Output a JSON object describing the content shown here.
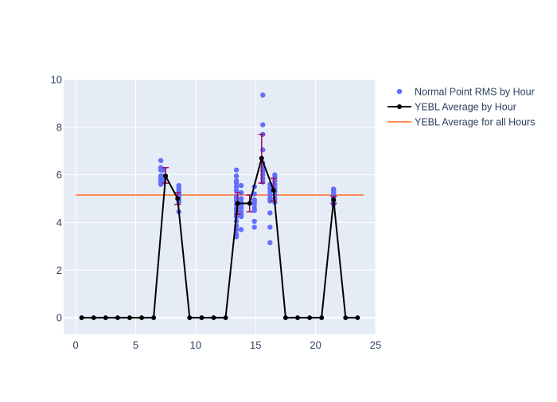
{
  "chart_data": {
    "type": "scatter",
    "title": "",
    "xlabel": "",
    "ylabel": "",
    "xlim": [
      -1,
      25
    ],
    "ylim": [
      -0.7,
      10
    ],
    "x_ticks": [
      0,
      5,
      10,
      15,
      20,
      25
    ],
    "y_ticks": [
      0,
      2,
      4,
      6,
      8,
      10
    ],
    "grid": true,
    "legend_position": "top-right",
    "colors": {
      "plot_bg": "#e5ecf6",
      "grid": "#ffffff",
      "scatter": "#636efa",
      "average_line": "#000000",
      "error_bar": "#a10a5a",
      "overall_line": "#ff8c55"
    },
    "series": [
      {
        "name": "Normal Point RMS by Hour",
        "kind": "scatter",
        "points": [
          [
            7.1,
            6.6
          ],
          [
            7.1,
            6.3
          ],
          [
            7.1,
            6.25
          ],
          [
            7.1,
            6.2
          ],
          [
            7.1,
            5.95
          ],
          [
            7.1,
            5.85
          ],
          [
            7.1,
            5.75
          ],
          [
            7.1,
            5.7
          ],
          [
            7.1,
            5.65
          ],
          [
            7.1,
            5.6
          ],
          [
            7.3,
            6.2
          ],
          [
            7.3,
            5.95
          ],
          [
            7.3,
            5.8
          ],
          [
            7.3,
            5.7
          ],
          [
            8.6,
            5.55
          ],
          [
            8.6,
            5.45
          ],
          [
            8.6,
            5.35
          ],
          [
            8.6,
            5.25
          ],
          [
            8.6,
            5.15
          ],
          [
            8.6,
            5.05
          ],
          [
            8.6,
            4.95
          ],
          [
            8.6,
            4.85
          ],
          [
            8.6,
            4.45
          ],
          [
            13.4,
            6.2
          ],
          [
            13.4,
            5.95
          ],
          [
            13.4,
            5.75
          ],
          [
            13.4,
            5.65
          ],
          [
            13.4,
            5.5
          ],
          [
            13.4,
            5.35
          ],
          [
            13.4,
            5.1
          ],
          [
            13.4,
            5.0
          ],
          [
            13.4,
            4.9
          ],
          [
            13.4,
            4.75
          ],
          [
            13.4,
            4.6
          ],
          [
            13.4,
            4.5
          ],
          [
            13.4,
            4.35
          ],
          [
            13.4,
            4.25
          ],
          [
            13.4,
            4.05
          ],
          [
            13.4,
            3.85
          ],
          [
            13.4,
            3.7
          ],
          [
            13.4,
            3.5
          ],
          [
            13.4,
            3.4
          ],
          [
            13.8,
            5.55
          ],
          [
            13.8,
            5.25
          ],
          [
            13.8,
            5.0
          ],
          [
            13.8,
            4.85
          ],
          [
            13.8,
            4.7
          ],
          [
            13.8,
            4.6
          ],
          [
            13.8,
            4.45
          ],
          [
            13.8,
            4.35
          ],
          [
            13.8,
            4.25
          ],
          [
            13.8,
            3.7
          ],
          [
            14.9,
            5.5
          ],
          [
            14.9,
            5.2
          ],
          [
            14.9,
            4.95
          ],
          [
            14.9,
            4.85
          ],
          [
            14.9,
            4.75
          ],
          [
            14.9,
            4.6
          ],
          [
            14.9,
            4.5
          ],
          [
            14.9,
            4.05
          ],
          [
            14.9,
            3.8
          ],
          [
            15.6,
            9.35
          ],
          [
            15.6,
            8.1
          ],
          [
            15.6,
            7.7
          ],
          [
            15.6,
            7.05
          ],
          [
            15.6,
            6.5
          ],
          [
            15.6,
            6.3
          ],
          [
            15.6,
            6.15
          ],
          [
            15.6,
            6.0
          ],
          [
            15.6,
            5.85
          ],
          [
            15.6,
            5.7
          ],
          [
            16.2,
            5.6
          ],
          [
            16.2,
            5.45
          ],
          [
            16.2,
            5.3
          ],
          [
            16.2,
            5.15
          ],
          [
            16.2,
            5.0
          ],
          [
            16.2,
            4.9
          ],
          [
            16.2,
            4.4
          ],
          [
            16.2,
            3.8
          ],
          [
            16.2,
            3.15
          ],
          [
            16.6,
            6.0
          ],
          [
            16.6,
            5.9
          ],
          [
            16.6,
            5.75
          ],
          [
            16.6,
            5.6
          ],
          [
            16.6,
            5.45
          ],
          [
            16.6,
            5.3
          ],
          [
            16.6,
            5.15
          ],
          [
            16.6,
            5.0
          ],
          [
            16.6,
            4.85
          ],
          [
            21.5,
            5.4
          ],
          [
            21.5,
            5.35
          ],
          [
            21.5,
            5.25
          ],
          [
            21.5,
            5.15
          ],
          [
            21.5,
            5.05
          ],
          [
            21.5,
            4.95
          ],
          [
            21.5,
            4.85
          ],
          [
            21.5,
            4.75
          ]
        ]
      },
      {
        "name": "YEBL Average by Hour",
        "kind": "line",
        "x": [
          0.5,
          1.5,
          2.5,
          3.5,
          4.5,
          5.5,
          6.5,
          7.5,
          8.5,
          9.5,
          10.5,
          11.5,
          12.5,
          13.5,
          14.5,
          15.5,
          16.5,
          17.5,
          18.5,
          19.5,
          20.5,
          21.5,
          22.5,
          23.5
        ],
        "y": [
          0,
          0,
          0,
          0,
          0,
          0,
          0,
          5.95,
          5.0,
          0,
          0,
          0,
          0,
          4.8,
          4.8,
          6.7,
          5.35,
          0,
          0,
          0,
          0,
          4.95,
          0,
          0
        ],
        "error_bars": [
          {
            "x": 7.5,
            "low": 5.65,
            "high": 6.3
          },
          {
            "x": 8.5,
            "low": 4.75,
            "high": 5.25
          },
          {
            "x": 13.5,
            "low": 4.35,
            "high": 5.25
          },
          {
            "x": 14.5,
            "low": 4.45,
            "high": 5.15
          },
          {
            "x": 15.5,
            "low": 5.65,
            "high": 7.7
          },
          {
            "x": 16.5,
            "low": 4.9,
            "high": 5.85
          },
          {
            "x": 21.5,
            "low": 4.8,
            "high": 5.1
          }
        ]
      },
      {
        "name": "YEBL Average for all Hours",
        "kind": "hline",
        "x": [
          0,
          24
        ],
        "y": 5.15
      }
    ]
  }
}
